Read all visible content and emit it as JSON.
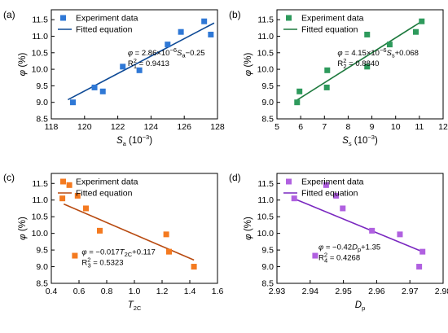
{
  "chart_data": [
    {
      "type": "scatter",
      "panel": "(a)",
      "xlabel": {
        "main": "S",
        "sub": "a",
        "suffix": " (10",
        "sup": "−3",
        "end": ")"
      },
      "ylabel": "φ (%)",
      "xlim": [
        118,
        128
      ],
      "ylim": [
        8.5,
        11.8
      ],
      "xticks": [
        118,
        120,
        122,
        124,
        126,
        128
      ],
      "yticks": [
        8.5,
        9.0,
        9.5,
        10.0,
        10.5,
        11.0,
        11.5
      ],
      "x_tick_labels": [
        "118",
        "120",
        "122",
        "124",
        "126",
        "128"
      ],
      "y_tick_labels": [
        "8.5",
        "9.0",
        "9.5",
        "10.0",
        "10.5",
        "11.0",
        "11.5"
      ],
      "legend": {
        "scatter": "Experiment data",
        "line": "Fitted equation"
      },
      "color_marker": "#2f78d6",
      "color_line": "#0e4a96",
      "marker": "square",
      "points": [
        [
          119.3,
          9.0
        ],
        [
          120.6,
          9.45
        ],
        [
          121.1,
          9.33
        ],
        [
          122.3,
          10.08
        ],
        [
          123.3,
          9.97
        ],
        [
          125.0,
          10.75
        ],
        [
          125.8,
          11.13
        ],
        [
          127.2,
          11.45
        ],
        [
          127.6,
          11.05
        ]
      ],
      "fit_line": [
        [
          119.0,
          9.08
        ],
        [
          127.8,
          11.4
        ]
      ],
      "equation": {
        "line1": "φ = 2.86×10",
        "line1_sup": "−6",
        "line1_mid": "S",
        "line1_sub": "a",
        "line1_end": "−0.25",
        "line2": "R",
        "line2_sup": "2",
        "line2_sub": "1",
        "line2_end": " = 0.9413"
      },
      "eq_pos": [
        122.6,
        10.42
      ]
    },
    {
      "type": "scatter",
      "panel": "(b)",
      "xlabel": {
        "main": "S",
        "sub": "s",
        "suffix": " (10",
        "sup": "−3",
        "end": ")"
      },
      "ylabel": "φ (%)",
      "xlim": [
        5,
        12
      ],
      "ylim": [
        8.5,
        11.8
      ],
      "xticks": [
        5,
        6,
        7,
        8,
        9,
        10,
        11,
        12
      ],
      "yticks": [
        8.5,
        9.0,
        9.5,
        10.0,
        10.5,
        11.0,
        11.5
      ],
      "x_tick_labels": [
        "5",
        "6",
        "7",
        "8",
        "9",
        "10",
        "11",
        "12"
      ],
      "y_tick_labels": [
        "8.5",
        "9.0",
        "9.5",
        "10.0",
        "10.5",
        "11.0",
        "11.5"
      ],
      "legend": {
        "scatter": "Experiment data",
        "line": "Fitted equation"
      },
      "color_marker": "#2e9a5c",
      "color_line": "#1e7a3e",
      "marker": "square",
      "points": [
        [
          5.85,
          9.0
        ],
        [
          5.95,
          9.33
        ],
        [
          7.1,
          9.45
        ],
        [
          7.12,
          9.97
        ],
        [
          8.8,
          10.08
        ],
        [
          8.8,
          11.05
        ],
        [
          9.75,
          10.75
        ],
        [
          10.85,
          11.13
        ],
        [
          11.1,
          11.45
        ]
      ],
      "fit_line": [
        [
          5.85,
          9.07
        ],
        [
          11.1,
          11.45
        ]
      ],
      "equation": {
        "line1": "φ = 4.15×10",
        "line1_sup": "−6",
        "line1_mid": "S",
        "line1_sub": "s",
        "line1_end": "+0.068",
        "line2": "R",
        "line2_sup": "2",
        "line2_sub": "2",
        "line2_end": " = 0.8840"
      },
      "eq_pos": [
        7.55,
        10.42
      ]
    },
    {
      "type": "scatter",
      "panel": "(c)",
      "xlabel": {
        "main": "T",
        "sub": "2C",
        "suffix": "",
        "sup": "",
        "end": ""
      },
      "ylabel": "φ (%)",
      "xlim": [
        0.4,
        1.6
      ],
      "ylim": [
        8.5,
        11.8
      ],
      "xticks": [
        0.4,
        0.6,
        0.8,
        1.0,
        1.2,
        1.4,
        1.6
      ],
      "yticks": [
        8.5,
        9.0,
        9.5,
        10.0,
        10.5,
        11.0,
        11.5
      ],
      "x_tick_labels": [
        "0.4",
        "0.6",
        "0.8",
        "1.0",
        "1.2",
        "1.4",
        "1.6"
      ],
      "y_tick_labels": [
        "8.5",
        "9.0",
        "9.5",
        "10.0",
        "10.5",
        "11.0",
        "11.5"
      ],
      "legend": {
        "scatter": "Experiment data",
        "line": "Fitted equation"
      },
      "color_marker": "#f47a20",
      "color_line": "#b84a10",
      "marker": "square",
      "points": [
        [
          0.48,
          11.05
        ],
        [
          0.53,
          11.45
        ],
        [
          0.57,
          9.33
        ],
        [
          0.59,
          11.13
        ],
        [
          0.65,
          10.75
        ],
        [
          0.75,
          10.08
        ],
        [
          1.23,
          9.97
        ],
        [
          1.25,
          9.45
        ],
        [
          1.43,
          9.0
        ]
      ],
      "fit_line": [
        [
          0.49,
          10.88
        ],
        [
          1.43,
          9.2
        ]
      ],
      "equation": {
        "line1": "φ = −0.017T",
        "line1_sup": "",
        "line1_mid": "",
        "line1_sub": "2C",
        "line1_end": "+0.117",
        "line2": "R",
        "line2_sup": "2",
        "line2_sub": "3",
        "line2_end": " = 0.5323"
      },
      "eq_pos": [
        0.62,
        9.37
      ]
    },
    {
      "type": "scatter",
      "panel": "(d)",
      "xlabel": {
        "main": "D",
        "sub": "p",
        "suffix": "",
        "sup": "",
        "end": ""
      },
      "ylabel": "φ (%)",
      "xlim": [
        2.93,
        2.98
      ],
      "ylim": [
        8.5,
        11.8
      ],
      "xticks": [
        2.93,
        2.94,
        2.95,
        2.96,
        2.97,
        2.98
      ],
      "yticks": [
        8.5,
        9.0,
        9.5,
        10.0,
        10.5,
        11.0,
        11.5
      ],
      "x_tick_labels": [
        "2.93",
        "2.94",
        "2.95",
        "2.96",
        "2.97",
        "2.98"
      ],
      "y_tick_labels": [
        "8.5",
        "9.0",
        "9.5",
        "10.0",
        "10.5",
        "11.0",
        "11.5"
      ],
      "legend": {
        "scatter": "Experiment data",
        "line": "Fitted equation"
      },
      "color_marker": "#b060e0",
      "color_line": "#7a28c0",
      "marker": "square",
      "points": [
        [
          2.9352,
          11.05
        ],
        [
          2.9415,
          9.33
        ],
        [
          2.9448,
          11.45
        ],
        [
          2.9478,
          11.13
        ],
        [
          2.9498,
          10.75
        ],
        [
          2.9586,
          10.08
        ],
        [
          2.967,
          9.97
        ],
        [
          2.9728,
          9.0
        ],
        [
          2.9738,
          9.45
        ]
      ],
      "fit_line": [
        [
          2.9352,
          11.04
        ],
        [
          2.9738,
          9.45
        ]
      ],
      "equation": {
        "line1": "φ = −0.42D",
        "line1_sup": "",
        "line1_mid": "",
        "line1_sub": "p",
        "line1_end": "+1.35",
        "line2": "R",
        "line2_sup": "2",
        "line2_sub": "4",
        "line2_end": " = 0.4268"
      },
      "eq_pos": [
        2.9425,
        9.52
      ]
    }
  ]
}
